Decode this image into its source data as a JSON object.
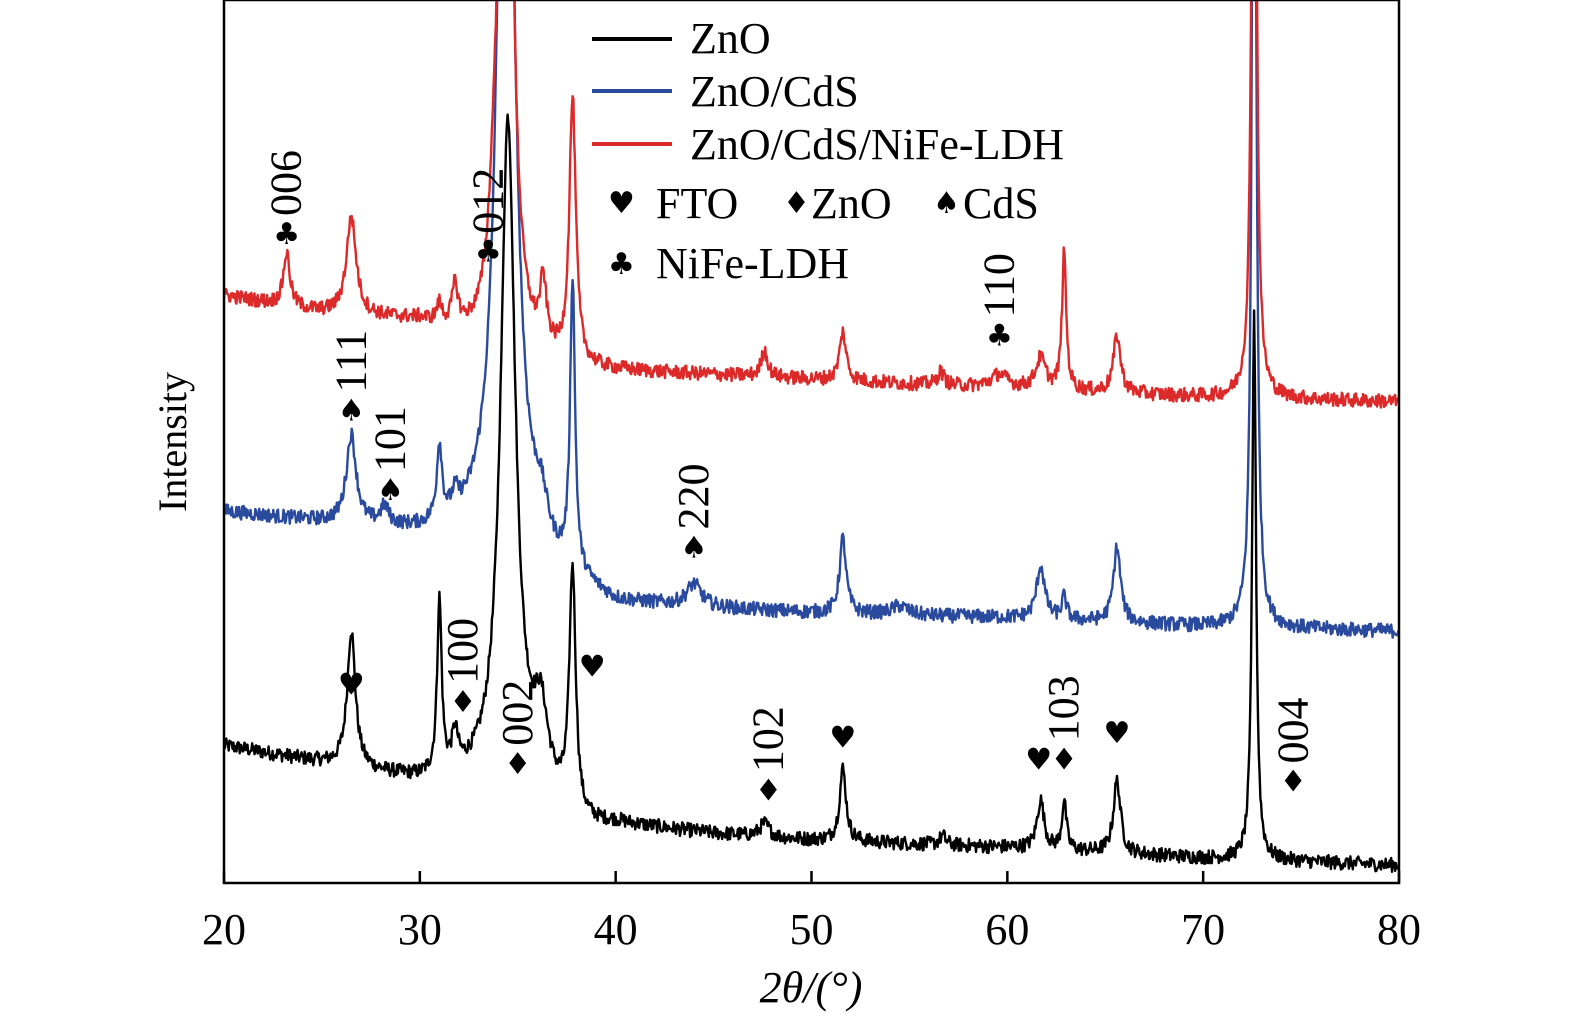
{
  "chart_data": {
    "type": "line",
    "title": "",
    "xlabel": "2θ/(°)",
    "ylabel": "Intensity",
    "xlim": [
      20,
      80
    ],
    "xticks": [
      20,
      30,
      40,
      50,
      60,
      70,
      80
    ],
    "grid": false,
    "y_ticks_shown": false,
    "legend_placement": "top-center",
    "legend_symbols": [
      {
        "symbol": "♥",
        "label": "FTO"
      },
      {
        "symbol": "♦",
        "label": "ZnO"
      },
      {
        "symbol": "♠",
        "label": "CdS"
      },
      {
        "symbol": "♣",
        "label": "NiFe-LDH"
      }
    ],
    "series": [
      {
        "name": "ZnO",
        "color": "#000000",
        "baseline": [
          [
            20,
            0.155
          ],
          [
            30,
            0.115
          ],
          [
            34,
            0.115
          ],
          [
            36,
            0.11
          ],
          [
            38,
            0.06
          ],
          [
            40,
            0.065
          ],
          [
            45,
            0.055
          ],
          [
            50,
            0.048
          ],
          [
            60,
            0.04
          ],
          [
            70,
            0.028
          ],
          [
            80,
            0.02
          ]
        ],
        "peaks": [
          {
            "x": 26.5,
            "h": 0.155,
            "w": 0.25
          },
          {
            "x": 31.0,
            "h": 0.195,
            "w": 0.14
          },
          {
            "x": 31.8,
            "h": 0.04,
            "w": 0.18
          },
          {
            "x": 34.5,
            "h": 0.75,
            "w": 0.45
          },
          {
            "x": 36.2,
            "h": 0.07,
            "w": 0.4
          },
          {
            "x": 37.8,
            "h": 0.28,
            "w": 0.2
          },
          {
            "x": 47.6,
            "h": 0.015,
            "w": 0.3
          },
          {
            "x": 51.6,
            "h": 0.082,
            "w": 0.2
          },
          {
            "x": 56.7,
            "h": 0.01,
            "w": 0.2
          },
          {
            "x": 61.7,
            "h": 0.055,
            "w": 0.22
          },
          {
            "x": 62.9,
            "h": 0.055,
            "w": 0.14
          },
          {
            "x": 65.6,
            "h": 0.082,
            "w": 0.22
          },
          {
            "x": 72.6,
            "h": 0.615,
            "w": 0.12
          }
        ]
      },
      {
        "name": "ZnO/CdS",
        "color": "#2a4a9e",
        "baseline": [
          [
            20,
            0.42
          ],
          [
            30,
            0.395
          ],
          [
            34,
            0.395
          ],
          [
            37,
            0.345
          ],
          [
            40,
            0.315
          ],
          [
            45,
            0.31
          ],
          [
            50,
            0.305
          ],
          [
            60,
            0.3
          ],
          [
            70,
            0.29
          ],
          [
            80,
            0.285
          ]
        ],
        "peaks": [
          {
            "x": 26.5,
            "h": 0.1,
            "w": 0.3
          },
          {
            "x": 28.2,
            "h": 0.02,
            "w": 0.25
          },
          {
            "x": 31.0,
            "h": 0.085,
            "w": 0.16
          },
          {
            "x": 31.8,
            "h": 0.02,
            "w": 0.2
          },
          {
            "x": 34.4,
            "h": 1.2,
            "w": 0.45
          },
          {
            "x": 36.2,
            "h": 0.04,
            "w": 0.4
          },
          {
            "x": 37.8,
            "h": 0.33,
            "w": 0.15
          },
          {
            "x": 44.0,
            "h": 0.025,
            "w": 0.45
          },
          {
            "x": 51.6,
            "h": 0.085,
            "w": 0.2
          },
          {
            "x": 54.5,
            "h": 0.01,
            "w": 0.5
          },
          {
            "x": 61.7,
            "h": 0.06,
            "w": 0.25
          },
          {
            "x": 62.9,
            "h": 0.025,
            "w": 0.15
          },
          {
            "x": 65.6,
            "h": 0.085,
            "w": 0.22
          },
          {
            "x": 72.6,
            "h": 1.3,
            "w": 0.12
          }
        ]
      },
      {
        "name": "ZnO/CdS/NiFe-LDH",
        "color": "#dc2a2a",
        "baseline": [
          [
            20,
            0.665
          ],
          [
            25,
            0.645
          ],
          [
            30,
            0.635
          ],
          [
            34,
            0.6
          ],
          [
            38,
            0.58
          ],
          [
            45,
            0.575
          ],
          [
            50,
            0.57
          ],
          [
            60,
            0.56
          ],
          [
            70,
            0.55
          ],
          [
            80,
            0.545
          ]
        ],
        "peaks": [
          {
            "x": 23.2,
            "h": 0.06,
            "w": 0.2
          },
          {
            "x": 26.5,
            "h": 0.11,
            "w": 0.3
          },
          {
            "x": 31.0,
            "h": 0.02,
            "w": 0.16
          },
          {
            "x": 31.8,
            "h": 0.045,
            "w": 0.18
          },
          {
            "x": 33.8,
            "h": 0.08,
            "w": 0.3
          },
          {
            "x": 34.4,
            "h": 1.2,
            "w": 0.3
          },
          {
            "x": 36.3,
            "h": 0.07,
            "w": 0.2
          },
          {
            "x": 37.8,
            "h": 0.3,
            "w": 0.2
          },
          {
            "x": 47.6,
            "h": 0.03,
            "w": 0.2
          },
          {
            "x": 51.6,
            "h": 0.055,
            "w": 0.2
          },
          {
            "x": 56.6,
            "h": 0.015,
            "w": 0.2
          },
          {
            "x": 59.6,
            "h": 0.015,
            "w": 0.5
          },
          {
            "x": 61.7,
            "h": 0.035,
            "w": 0.3
          },
          {
            "x": 62.9,
            "h": 0.155,
            "w": 0.13
          },
          {
            "x": 65.6,
            "h": 0.065,
            "w": 0.22
          },
          {
            "x": 72.6,
            "h": 1.2,
            "w": 0.12
          }
        ]
      }
    ],
    "annotations": [
      {
        "symbol": "♣",
        "label": "006",
        "x": 23.2,
        "y": 0.735
      },
      {
        "symbol": "♣",
        "label": "012",
        "x": 33.5,
        "y": 0.715
      },
      {
        "symbol": "♣",
        "label": "110",
        "x": 59.6,
        "y": 0.62
      },
      {
        "symbol": "♠",
        "label": "111",
        "x": 26.5,
        "y": 0.535
      },
      {
        "symbol": "♠",
        "label": "101",
        "x": 28.5,
        "y": 0.445
      },
      {
        "symbol": "♠",
        "label": "220",
        "x": 44.0,
        "y": 0.38
      },
      {
        "symbol": "♥",
        "label": "",
        "x": 26.5,
        "y": 0.225
      },
      {
        "symbol": "♦",
        "label": "100",
        "x": 32.2,
        "y": 0.205
      },
      {
        "symbol": "♦",
        "label": "002",
        "x": 35.0,
        "y": 0.135
      },
      {
        "symbol": "♥",
        "label": "",
        "x": 38.8,
        "y": 0.245
      },
      {
        "symbol": "♦",
        "label": "102",
        "x": 47.8,
        "y": 0.105
      },
      {
        "symbol": "♥",
        "label": "",
        "x": 51.6,
        "y": 0.165
      },
      {
        "symbol": "♥",
        "label": "",
        "x": 61.6,
        "y": 0.14
      },
      {
        "symbol": "♦",
        "label": "103",
        "x": 62.9,
        "y": 0.14
      },
      {
        "symbol": "♥",
        "label": "",
        "x": 65.6,
        "y": 0.17
      },
      {
        "symbol": "♦",
        "label": "004",
        "x": 74.6,
        "y": 0.115
      }
    ]
  }
}
